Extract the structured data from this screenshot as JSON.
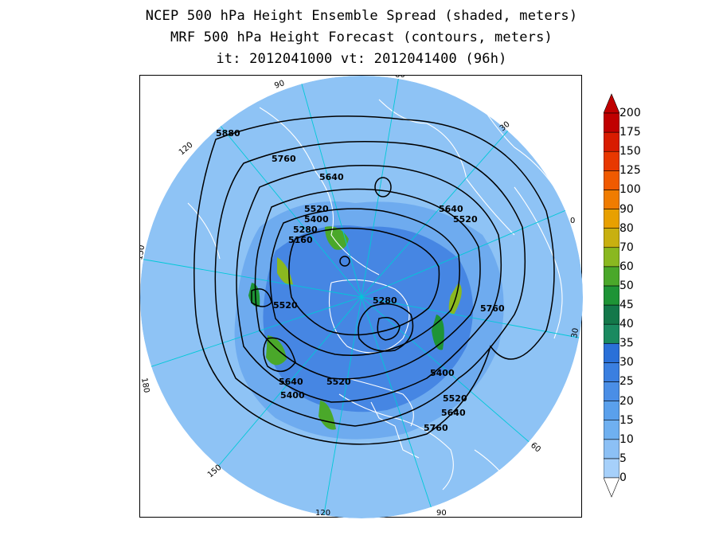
{
  "title": {
    "line1": "NCEP 500 hPa Height Ensemble Spread (shaded, meters)",
    "line2": "MRF 500 hPa Height Forecast (contours, meters)",
    "line3": "it: 2012041000      vt: 2012041400 (96h)"
  },
  "map": {
    "projection": "north-polar-stereographic",
    "longitude_labels": [
      "60",
      "30",
      "0",
      "30",
      "60",
      "90",
      "120",
      "150",
      "180",
      "150",
      "120",
      "90"
    ],
    "contour_labels": [
      "5880",
      "5760",
      "5640",
      "5520",
      "5400",
      "5280",
      "5160",
      "5520",
      "5280",
      "5640",
      "5520",
      "5760",
      "5400",
      "5520",
      "5640",
      "5760",
      "5400",
      "5640",
      "5520"
    ],
    "colors": {
      "ocean_disc": "#8ec3f5",
      "coastline": "#ffffff",
      "meridian": "#00c8d8",
      "contour": "#000000"
    }
  },
  "colorbar": {
    "levels": [
      "0",
      "5",
      "10",
      "15",
      "20",
      "25",
      "30",
      "35",
      "40",
      "45",
      "50",
      "60",
      "70",
      "80",
      "90",
      "100",
      "125",
      "150",
      "175",
      "200"
    ],
    "colors": [
      "#a6d0fa",
      "#8cc0f5",
      "#6fb0f0",
      "#5aa0ec",
      "#4a8ee6",
      "#3a7fe0",
      "#2a70d8",
      "#1a8a60",
      "#13784a",
      "#1e9436",
      "#4aa82a",
      "#8ab820",
      "#c8b010",
      "#e8a000",
      "#f07c00",
      "#f05a00",
      "#e83800",
      "#d81c00",
      "#c00000"
    ]
  }
}
